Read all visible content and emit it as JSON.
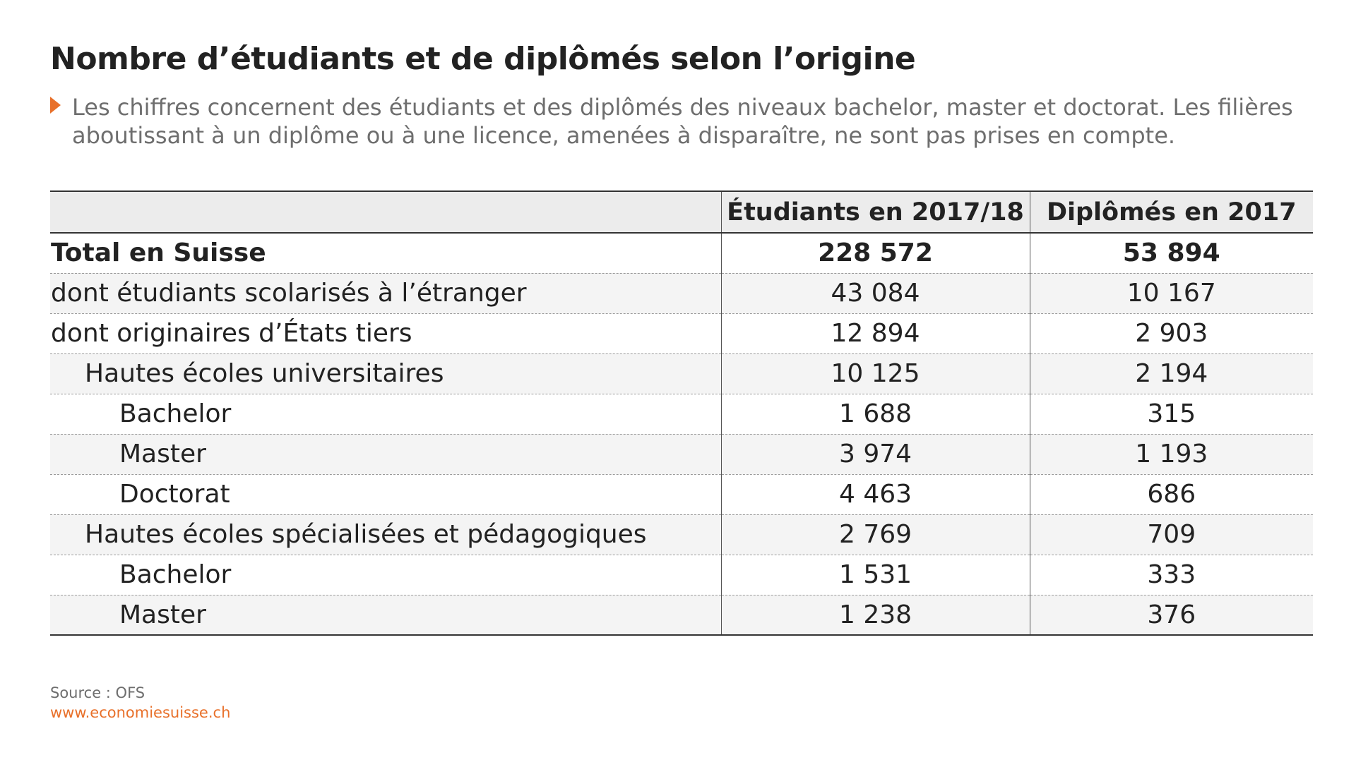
{
  "title": "Nombre d’étudiants et de diplômés selon l’origine",
  "subtitle": "Les chiffres concernent des étudiants et des diplômés des niveaux bachelor, master et doctorat. Les filières aboutissant à un diplôme ou à une licence, amenées à disparaître, ne sont pas prises en compte.",
  "accent_color": "#e8702a",
  "subtitle_icon": "triangle-right-icon",
  "chart_data": {
    "type": "table",
    "columns": [
      "",
      "Étudiants en 2017/18",
      "Diplômés en 2017"
    ],
    "rows": [
      {
        "label": "Total en Suisse",
        "etudiants": "228 572",
        "diplomes": "53 894",
        "level": 0,
        "bold": true
      },
      {
        "label": "dont étudiants scolarisés à l’étranger",
        "etudiants": "43 084",
        "diplomes": "10 167",
        "level": 0,
        "bold": false
      },
      {
        "label": "dont originaires d’États tiers",
        "etudiants": "12 894",
        "diplomes": "2 903",
        "level": 0,
        "bold": false
      },
      {
        "label": "Hautes écoles universitaires",
        "etudiants": "10 125",
        "diplomes": "2 194",
        "level": 1,
        "bold": false
      },
      {
        "label": "Bachelor",
        "etudiants": "1 688",
        "diplomes": "315",
        "level": 2,
        "bold": false
      },
      {
        "label": "Master",
        "etudiants": "3 974",
        "diplomes": "1 193",
        "level": 2,
        "bold": false
      },
      {
        "label": "Doctorat",
        "etudiants": "4 463",
        "diplomes": "686",
        "level": 2,
        "bold": false
      },
      {
        "label": "Hautes écoles spécialisées et pédagogiques",
        "etudiants": "2 769",
        "diplomes": "709",
        "level": 1,
        "bold": false
      },
      {
        "label": "Bachelor",
        "etudiants": "1 531",
        "diplomes": "333",
        "level": 2,
        "bold": false
      },
      {
        "label": "Master",
        "etudiants": "1 238",
        "diplomes": "376",
        "level": 2,
        "bold": false
      }
    ]
  },
  "footer": {
    "source": "Source : OFS",
    "website": "www.economiesuisse.ch"
  }
}
